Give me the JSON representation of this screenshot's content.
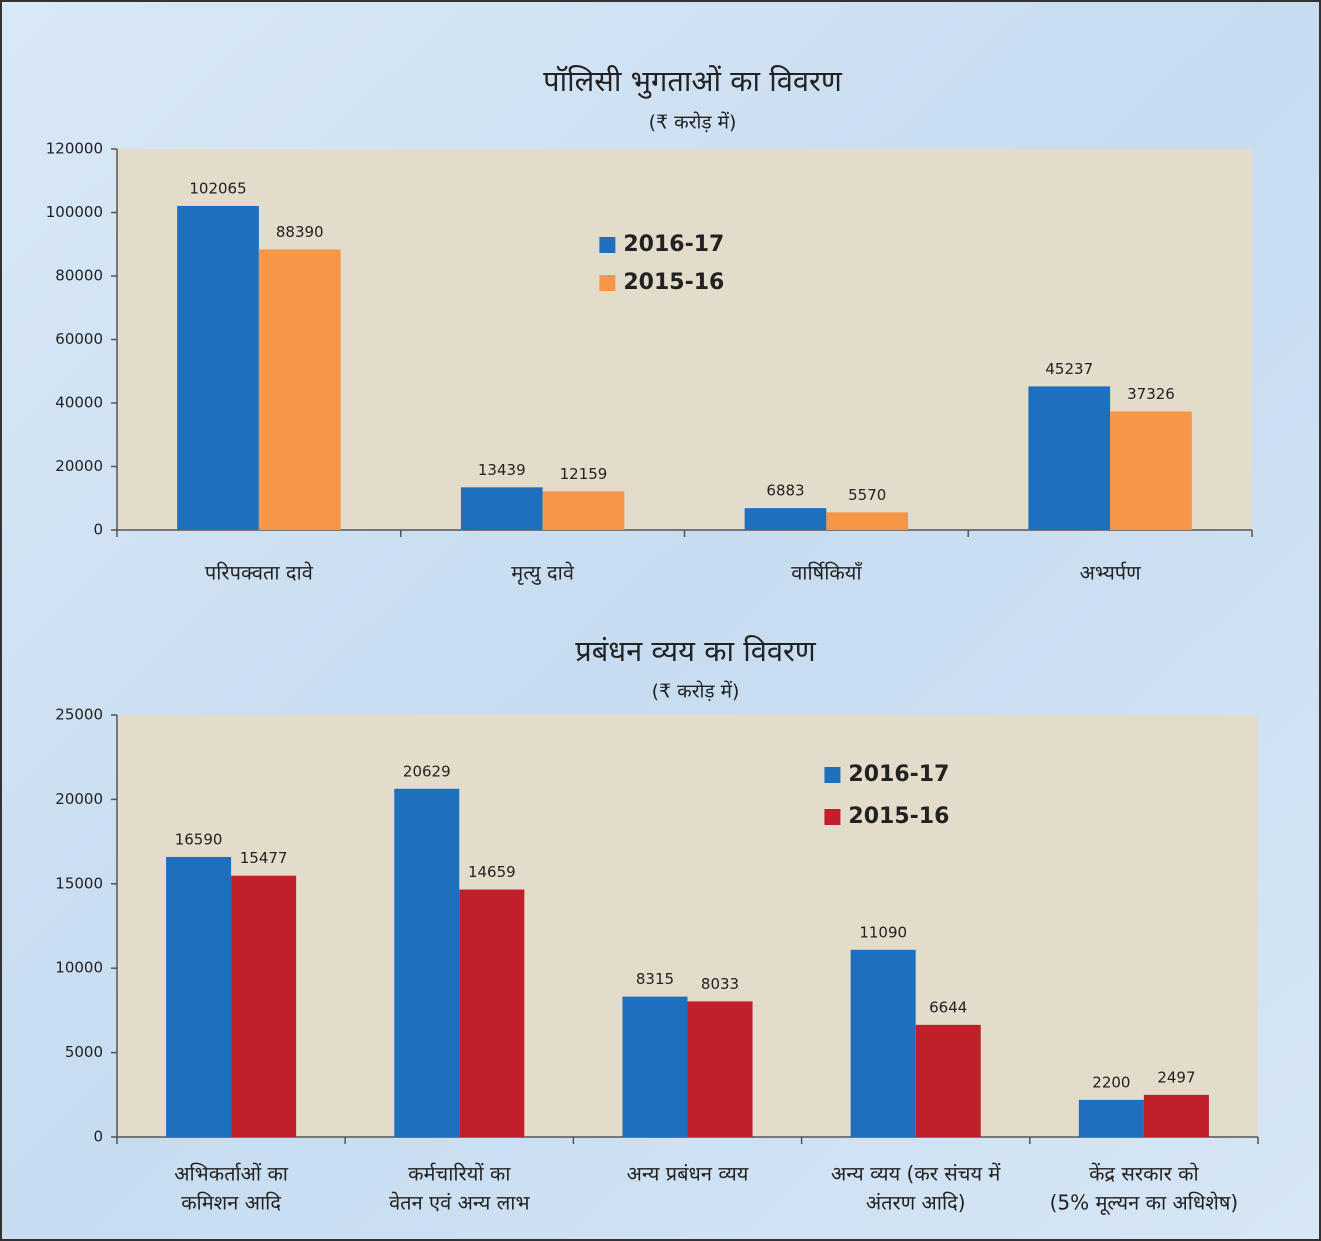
{
  "chart_data": [
    {
      "type": "bar",
      "title": "पॉलिसी भुगताओं का विवरण",
      "subtitle": "(₹ करोड़ में)",
      "categories": [
        [
          "परिपक्वता दावे"
        ],
        [
          "मृत्यु दावे"
        ],
        [
          "वार्षिकियाँ"
        ],
        [
          "अभ्यर्पण"
        ]
      ],
      "series": [
        {
          "name": "2016-17",
          "color": "#1f6fbf",
          "values": [
            102065,
            13439,
            6883,
            45237
          ]
        },
        {
          "name": "2015-16",
          "color": "#f79646",
          "values": [
            88390,
            12159,
            5570,
            37326
          ]
        }
      ],
      "ylim": [
        0,
        120000
      ],
      "yticks": [
        0,
        20000,
        40000,
        60000,
        80000,
        100000,
        120000
      ],
      "grid": false,
      "legend": "upper center"
    },
    {
      "type": "bar",
      "title": "प्रबंधन व्यय का विवरण",
      "subtitle": "(₹ करोड़ में)",
      "categories": [
        [
          "अभिकर्ताओं का",
          "कमिशन आदि"
        ],
        [
          "कर्मचारियों का",
          "वेतन एवं अन्य लाभ"
        ],
        [
          "अन्य प्रबंधन व्यय"
        ],
        [
          "अन्य व्यय (कर संचय में",
          "अंतरण आदि)"
        ],
        [
          "केंद्र सरकार को",
          "(5% मूल्यन का अधिशेष)"
        ]
      ],
      "series": [
        {
          "name": "2016-17",
          "color": "#1f6fbf",
          "values": [
            16590,
            20629,
            8315,
            11090,
            2200
          ]
        },
        {
          "name": "2015-16",
          "color": "#c0202a",
          "values": [
            15477,
            14659,
            8033,
            6644,
            2497
          ]
        }
      ],
      "ylim": [
        0,
        25000
      ],
      "yticks": [
        0,
        5000,
        10000,
        15000,
        20000,
        25000
      ],
      "grid": false,
      "legend": "upper right"
    }
  ]
}
